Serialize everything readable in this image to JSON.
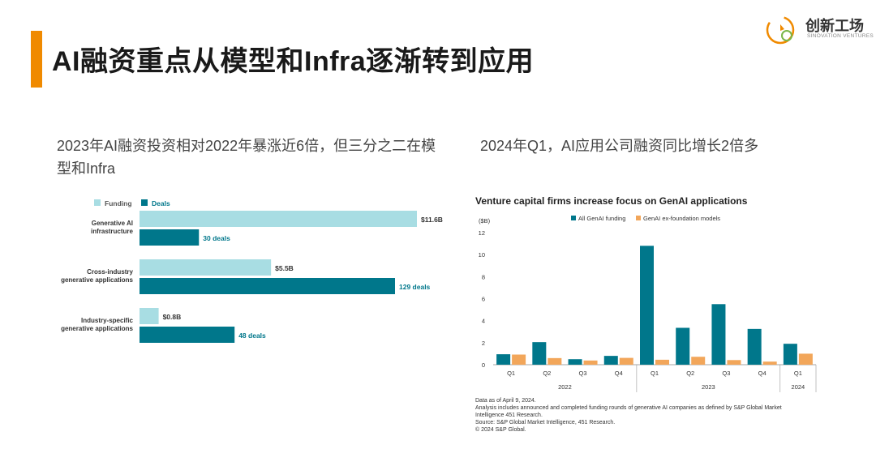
{
  "page": {
    "title": "AI融资重点从模型和Infra逐渐转到应用",
    "accent_color": "#f08a00"
  },
  "logo": {
    "name": "创新工场",
    "sub": "SINOVATION VENTURES"
  },
  "left_panel": {
    "subtitle": "2023年AI融资投资相对2022年暴涨近6倍，但三分之二在模型和Infra"
  },
  "right_panel": {
    "subtitle": "2024年Q1，AI应用公司融资同比增长2倍多"
  },
  "chart_data": [
    {
      "type": "bar",
      "orientation": "horizontal",
      "categories": [
        "Generative AI infrastructure",
        "Cross-industry generative applications",
        "Industry-specific generative applications"
      ],
      "category_lines": [
        [
          "Generative AI",
          "infrastructure"
        ],
        [
          "Cross-industry",
          "generative applications"
        ],
        [
          "Industry-specific",
          "generative applications"
        ]
      ],
      "series": [
        {
          "name": "Funding",
          "color": "#a8dde3",
          "values": [
            11.6,
            5.5,
            0.8
          ],
          "labels": [
            "$11.6B",
            "$5.5B",
            "$0.8B"
          ]
        },
        {
          "name": "Deals",
          "color": "#00778b",
          "values": [
            30,
            129,
            48
          ],
          "labels": [
            "30 deals",
            "129 deals",
            "48 deals"
          ]
        }
      ],
      "legend_position": "top-left"
    },
    {
      "type": "bar",
      "title": "Venture capital firms increase focus on GenAI applications",
      "ylabel": "($B)",
      "ylim": [
        0,
        12
      ],
      "yticks": [
        0,
        2,
        4,
        6,
        8,
        10,
        12
      ],
      "categories": [
        "Q1",
        "Q2",
        "Q3",
        "Q4",
        "Q1",
        "Q2",
        "Q3",
        "Q4",
        "Q1"
      ],
      "groups": [
        {
          "label": "2022",
          "count": 4
        },
        {
          "label": "2023",
          "count": 4
        },
        {
          "label": "2024",
          "count": 1
        }
      ],
      "series": [
        {
          "name": "All GenAI funding",
          "color": "#00778b",
          "values": [
            0.95,
            2.05,
            0.5,
            0.8,
            10.8,
            3.35,
            5.5,
            3.25,
            1.9
          ]
        },
        {
          "name": "GenAI ex-foundation models",
          "color": "#f2a65a",
          "values": [
            0.92,
            0.6,
            0.38,
            0.62,
            0.45,
            0.72,
            0.42,
            0.28,
            1.0
          ]
        }
      ],
      "legend_position": "top",
      "grid": false
    }
  ],
  "footnotes": [
    "Data as of April 9, 2024.",
    "Analysis includes announced and completed funding rounds of generative AI companies as defined by S&P Global Market",
    "Intelligence 451 Research.",
    "Source: S&P Global Market Intelligence, 451 Research.",
    "© 2024 S&P Global."
  ]
}
